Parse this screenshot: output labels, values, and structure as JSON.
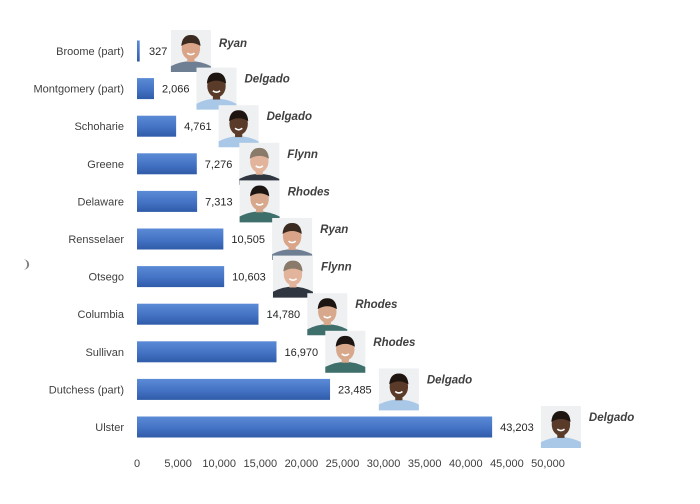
{
  "chart_data": {
    "type": "bar",
    "orientation": "horizontal",
    "title": "",
    "xlabel": "",
    "ylabel": "",
    "xlim": [
      0,
      50000
    ],
    "x_ticks": [
      "0",
      "5,000",
      "10,000",
      "15,000",
      "20,000",
      "25,000",
      "30,000",
      "35,000",
      "40,000",
      "45,000",
      "50,000"
    ],
    "grid": false,
    "bar_color": "#4472C4",
    "categories": [
      "Broome (part)",
      "Montgomery (part)",
      "Schoharie",
      "Greene",
      "Delaware",
      "Rensselaer",
      "Otsego",
      "Columbia",
      "Sullivan",
      "Dutchess (part)",
      "Ulster"
    ],
    "values": [
      327,
      2066,
      4761,
      7276,
      7313,
      10505,
      10603,
      14780,
      16970,
      23485,
      43203
    ],
    "value_labels": [
      "327",
      "2,066",
      "4,761",
      "7,276",
      "7,313",
      "10,505",
      "10,603",
      "14,780",
      "16,970",
      "23,485",
      "43,203"
    ],
    "annotations": [
      "Ryan",
      "Delgado",
      "Delgado",
      "Flynn",
      "Rhodes",
      "Ryan",
      "Flynn",
      "Rhodes",
      "Rhodes",
      "Delgado",
      "Delgado"
    ],
    "photo_colors": {
      "Ryan": {
        "skin": "#d9a488",
        "hair": "#3b2a20",
        "shirt": "#6e7f93"
      },
      "Delgado": {
        "skin": "#5a3a28",
        "hair": "#1e1410",
        "shirt": "#a9c8e8"
      },
      "Flynn": {
        "skin": "#e2b49c",
        "hair": "#8a7a6a",
        "shirt": "#2f3640"
      },
      "Rhodes": {
        "skin": "#d8a88c",
        "hair": "#1c1512",
        "shirt": "#3f6f6a"
      }
    }
  },
  "side_mark": "❩"
}
